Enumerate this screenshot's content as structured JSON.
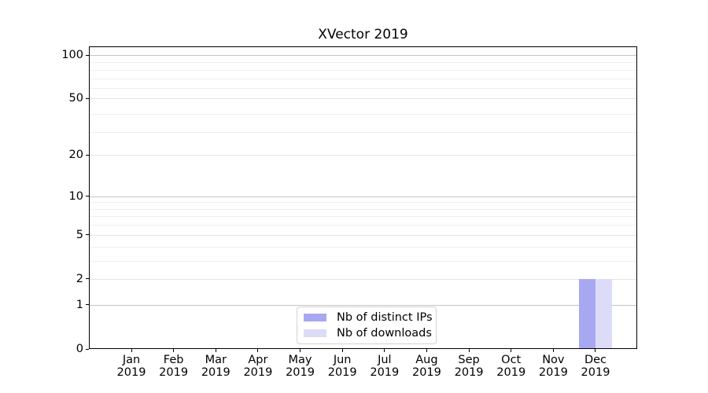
{
  "chart_data": {
    "type": "bar",
    "title": "XVector 2019",
    "categories": [
      "Jan",
      "Feb",
      "Mar",
      "Apr",
      "May",
      "Jun",
      "Jul",
      "Aug",
      "Sep",
      "Oct",
      "Nov",
      "Dec"
    ],
    "x_tick_second_line": "2019",
    "series": [
      {
        "name": "Nb of distinct IPs",
        "color": "#a8a8f2",
        "values": [
          0,
          0,
          0,
          0,
          0,
          0,
          0,
          0,
          0,
          0,
          0,
          2
        ]
      },
      {
        "name": "Nb of downloads",
        "color": "#dcdcf8",
        "values": [
          0,
          0,
          0,
          0,
          0,
          0,
          0,
          0,
          0,
          0,
          0,
          2
        ]
      }
    ],
    "y_axis": {
      "scale": "log1p",
      "tick_values": [
        0,
        1,
        2,
        5,
        10,
        20,
        50,
        100
      ],
      "tick_labels": [
        "0",
        "1",
        "2",
        "5",
        "10",
        "20",
        "50",
        "100"
      ],
      "range": [
        0,
        115
      ],
      "grid": "on",
      "gridlines": {
        "strong": [
          1,
          10,
          100
        ],
        "medium": [
          2,
          5,
          20,
          50
        ],
        "faint": [
          3,
          4,
          6,
          7,
          8,
          9,
          29,
          39,
          59,
          69,
          79,
          89
        ]
      }
    },
    "x_axis": {
      "grid": "off"
    },
    "legend": {
      "position": "lower-center",
      "items": [
        "Nb of distinct IPs",
        "Nb of downloads"
      ]
    },
    "colors": {
      "grid_strong": "#c5c5c5",
      "grid_medium": "#e4e4e4",
      "grid_faint": "#f0f0f0",
      "spine": "#000000",
      "text": "#000000",
      "legend_border": "#d3d3d3"
    }
  }
}
